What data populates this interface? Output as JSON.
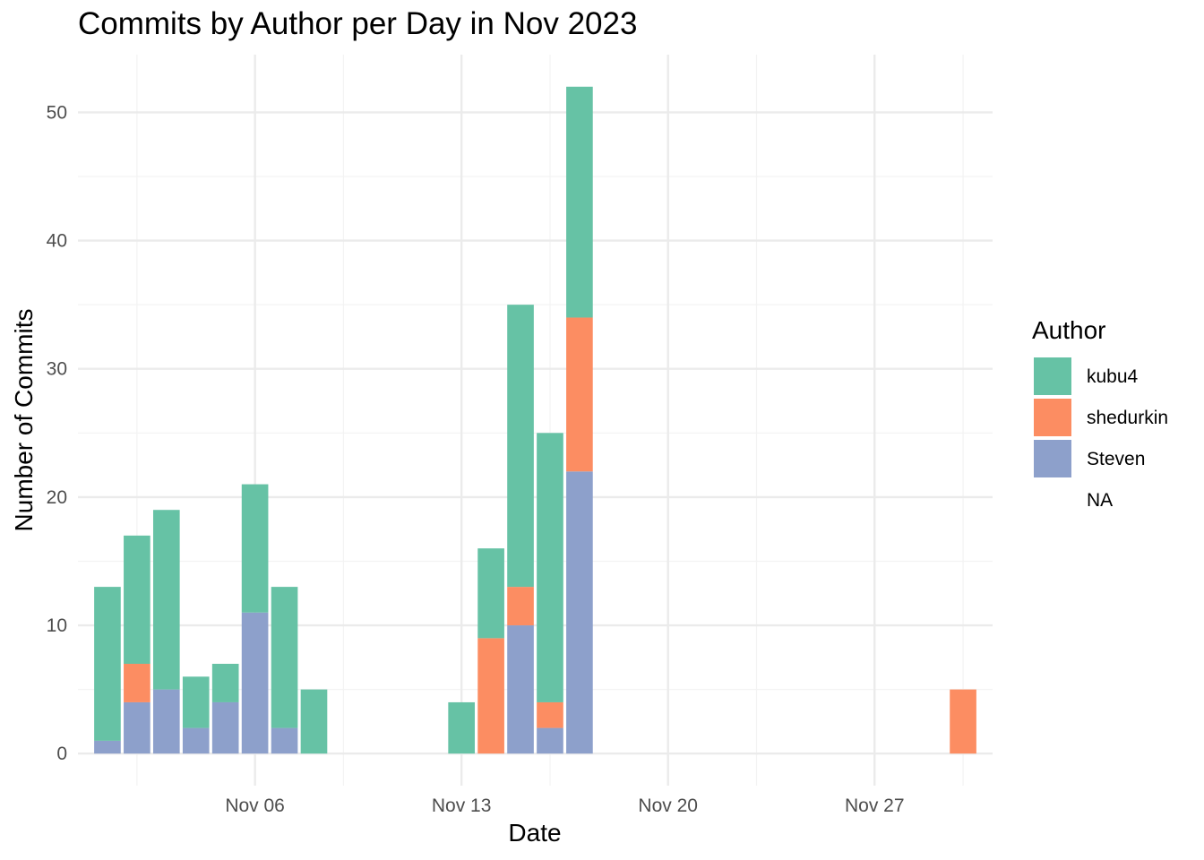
{
  "chart_data": {
    "type": "bar",
    "stacked": true,
    "title": "Commits by Author per Day in Nov 2023",
    "xlabel": "Date",
    "ylabel": "Number of Commits",
    "x_unit": "date",
    "xlim": [
      "2023-10-31",
      "2023-12-01"
    ],
    "ylim": [
      -2.5,
      54.5
    ],
    "y_ticks": [
      0,
      10,
      20,
      30,
      40,
      50
    ],
    "x_ticks": [
      {
        "date": "2023-11-06",
        "label": "Nov 06"
      },
      {
        "date": "2023-11-13",
        "label": "Nov 13"
      },
      {
        "date": "2023-11-20",
        "label": "Nov 20"
      },
      {
        "date": "2023-11-27",
        "label": "Nov 27"
      }
    ],
    "x_minor_dates": [
      "2023-11-02",
      "2023-11-09",
      "2023-11-16",
      "2023-11-23",
      "2023-11-30"
    ],
    "y_minor_ticks": [
      5,
      15,
      25,
      35,
      45
    ],
    "grid": true,
    "legend": {
      "title": "Author",
      "placement": "right",
      "entries": [
        {
          "label": "kubu4",
          "color": "#66c2a5"
        },
        {
          "label": "shedurkin",
          "color": "#fc8d62"
        },
        {
          "label": "Steven",
          "color": "#8da0cb"
        },
        {
          "label": "NA",
          "color": ""
        }
      ]
    },
    "stack_order_bottom_to_top": [
      "Steven",
      "shedurkin",
      "kubu4"
    ],
    "bars": [
      {
        "date": "2023-11-01",
        "Steven": 1,
        "shedurkin": 0,
        "kubu4": 12
      },
      {
        "date": "2023-11-02",
        "Steven": 4,
        "shedurkin": 3,
        "kubu4": 10
      },
      {
        "date": "2023-11-03",
        "Steven": 5,
        "shedurkin": 0,
        "kubu4": 14
      },
      {
        "date": "2023-11-04",
        "Steven": 2,
        "shedurkin": 0,
        "kubu4": 4
      },
      {
        "date": "2023-11-05",
        "Steven": 4,
        "shedurkin": 0,
        "kubu4": 3
      },
      {
        "date": "2023-11-06",
        "Steven": 11,
        "shedurkin": 0,
        "kubu4": 10
      },
      {
        "date": "2023-11-07",
        "Steven": 2,
        "shedurkin": 0,
        "kubu4": 11
      },
      {
        "date": "2023-11-08",
        "Steven": 0,
        "shedurkin": 0,
        "kubu4": 5
      },
      {
        "date": "2023-11-13",
        "Steven": 0,
        "shedurkin": 0,
        "kubu4": 4
      },
      {
        "date": "2023-11-14",
        "Steven": 0,
        "shedurkin": 9,
        "kubu4": 7
      },
      {
        "date": "2023-11-15",
        "Steven": 10,
        "shedurkin": 3,
        "kubu4": 22
      },
      {
        "date": "2023-11-16",
        "Steven": 2,
        "shedurkin": 2,
        "kubu4": 21
      },
      {
        "date": "2023-11-17",
        "Steven": 22,
        "shedurkin": 12,
        "kubu4": 18
      },
      {
        "date": "2023-11-30",
        "Steven": 0,
        "shedurkin": 5,
        "kubu4": 0
      }
    ]
  }
}
